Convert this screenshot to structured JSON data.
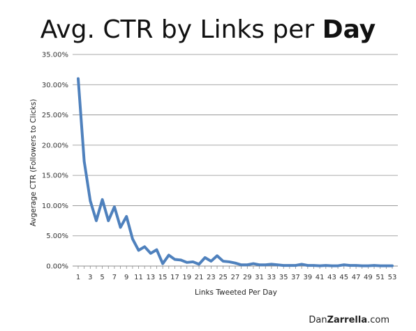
{
  "chart_data": {
    "type": "line",
    "title_prefix": "Avg. CTR by Links per ",
    "title_bold": "Day",
    "xlabel": "Links Tweeted Per Day",
    "ylabel": "Avgerage CTR (Followers to Clicks)",
    "ylim": [
      0,
      35
    ],
    "y_ticks": [
      "0.00%",
      "5.00%",
      "10.00%",
      "15.00%",
      "20.00%",
      "25.00%",
      "30.00%",
      "35.00%"
    ],
    "y_tick_values": [
      0,
      5,
      10,
      15,
      20,
      25,
      30,
      35
    ],
    "x_tick_labels": [
      "1",
      "3",
      "5",
      "7",
      "9",
      "11",
      "13",
      "15",
      "17",
      "19",
      "21",
      "23",
      "25",
      "27",
      "29",
      "31",
      "33",
      "35",
      "37",
      "39",
      "41",
      "43",
      "45",
      "47",
      "49",
      "51",
      "53"
    ],
    "grid": true,
    "line_color": "#4f81bd",
    "series": [
      {
        "x": [
          1,
          2,
          3,
          4,
          5,
          6,
          7,
          8,
          9,
          10,
          11,
          12,
          13,
          14,
          15,
          16,
          17,
          18,
          19,
          20,
          21,
          22,
          23,
          24,
          25,
          26,
          27,
          28,
          29,
          30,
          31,
          32,
          33,
          34,
          35,
          36,
          37,
          38,
          39,
          40,
          41,
          42,
          43,
          44,
          45,
          46,
          47,
          48,
          49,
          50,
          51,
          52,
          53
        ],
        "values": [
          31.0,
          17.3,
          10.8,
          7.5,
          11.0,
          7.5,
          9.8,
          6.4,
          8.2,
          4.5,
          2.6,
          3.2,
          2.1,
          2.7,
          0.4,
          1.8,
          1.1,
          1.0,
          0.6,
          0.7,
          0.3,
          1.4,
          0.8,
          1.7,
          0.8,
          0.7,
          0.5,
          0.2,
          0.2,
          0.4,
          0.2,
          0.2,
          0.3,
          0.2,
          0.1,
          0.1,
          0.1,
          0.3,
          0.1,
          0.1,
          0.05,
          0.1,
          0.05,
          0.05,
          0.2,
          0.1,
          0.1,
          0.05,
          0.05,
          0.1,
          0.05,
          0.05,
          0.05
        ]
      }
    ]
  },
  "credit": {
    "prefix": "Dan",
    "bold": "Zarrella",
    "suffix": ".com"
  }
}
